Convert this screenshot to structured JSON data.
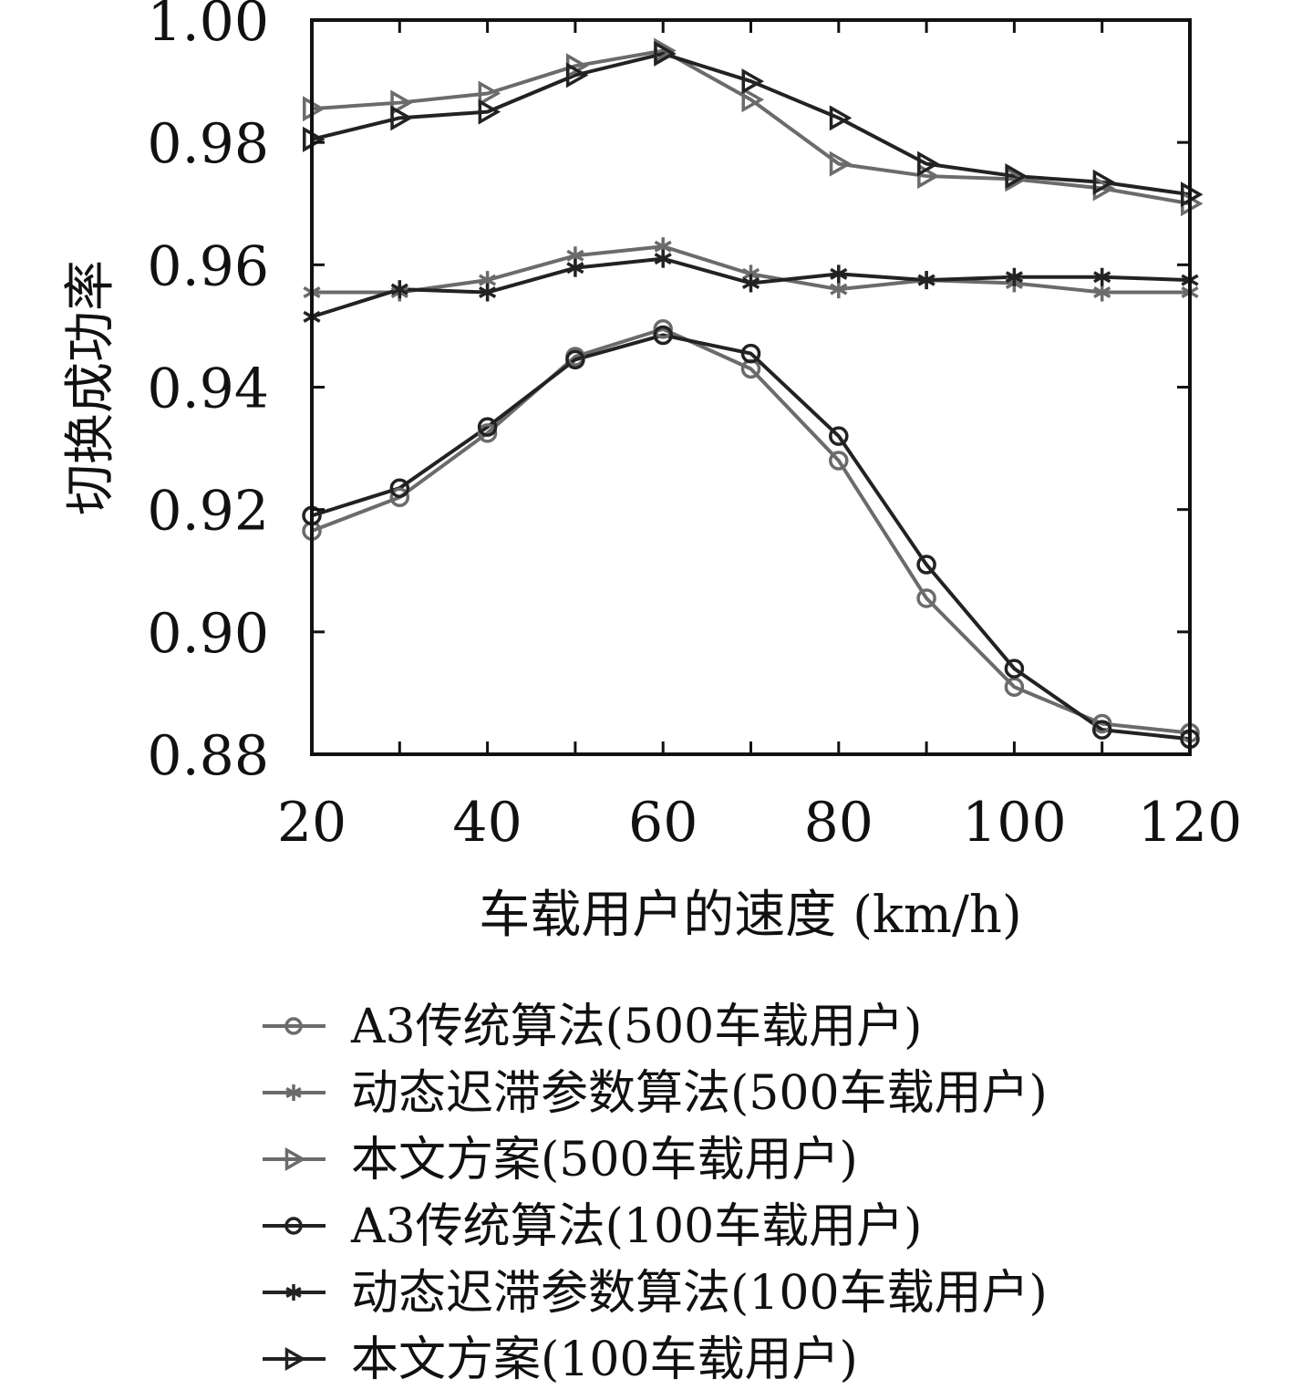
{
  "chart_data": {
    "type": "line",
    "xlabel": "车载用户的速度 (km/h)",
    "ylabel": "切换成功率",
    "xlim": [
      20,
      120
    ],
    "ylim": [
      0.88,
      1.0
    ],
    "x_ticks": [
      20,
      40,
      60,
      80,
      100,
      120
    ],
    "y_ticks": [
      "0.88",
      "0.90",
      "0.92",
      "0.94",
      "0.96",
      "0.98",
      "1.00"
    ],
    "grid": false,
    "legend_position": "below",
    "x": [
      20,
      30,
      40,
      50,
      60,
      70,
      80,
      90,
      100,
      110,
      120
    ],
    "series": [
      {
        "name": "A3传统算法(500车载用户)",
        "marker": "circle",
        "color": "#6b6b6b",
        "values": [
          0.9165,
          0.922,
          0.9325,
          0.945,
          0.9495,
          0.943,
          0.928,
          0.9055,
          0.891,
          0.885,
          0.8835
        ]
      },
      {
        "name": "动态迟滞参数算法(500车载用户)",
        "marker": "asterisk",
        "color": "#6b6b6b",
        "values": [
          0.9555,
          0.9555,
          0.9575,
          0.9615,
          0.963,
          0.9585,
          0.956,
          0.9575,
          0.957,
          0.9555,
          0.9555
        ]
      },
      {
        "name": "本文方案(500车载用户)",
        "marker": "triangle-right",
        "color": "#6b6b6b",
        "values": [
          0.9855,
          0.9865,
          0.988,
          0.9925,
          0.995,
          0.987,
          0.9765,
          0.9745,
          0.974,
          0.9725,
          0.97
        ]
      },
      {
        "name": "A3传统算法(100车载用户)",
        "marker": "circle",
        "color": "#222222",
        "values": [
          0.919,
          0.9235,
          0.9335,
          0.9445,
          0.9485,
          0.9455,
          0.932,
          0.911,
          0.894,
          0.884,
          0.8825
        ]
      },
      {
        "name": "动态迟滞参数算法(100车载用户)",
        "marker": "asterisk",
        "color": "#222222",
        "values": [
          0.9515,
          0.956,
          0.9555,
          0.9595,
          0.961,
          0.957,
          0.9585,
          0.9575,
          0.958,
          0.958,
          0.9575
        ]
      },
      {
        "name": "本文方案(100车载用户)",
        "marker": "triangle-right",
        "color": "#222222",
        "values": [
          0.9805,
          0.984,
          0.985,
          0.991,
          0.9945,
          0.99,
          0.984,
          0.9765,
          0.9745,
          0.9735,
          0.9715
        ]
      }
    ]
  }
}
